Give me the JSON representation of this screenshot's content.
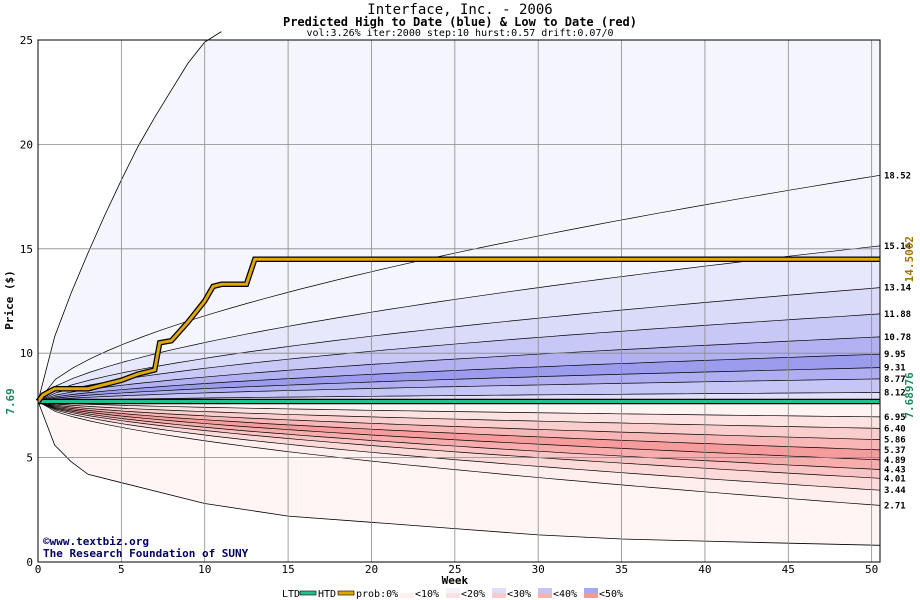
{
  "chart_data": {
    "type": "area",
    "title": "Interface, Inc. - 2006",
    "subtitle": "Predicted High to Date (blue) &  Low to Date (red)",
    "params": "vol:3.26% iter:2000 step:10 hurst:0.57 drift:0.07/0",
    "xlabel": "Week",
    "ylabel": "Price ($)",
    "xlim": [
      0,
      50.5
    ],
    "ylim": [
      0,
      25
    ],
    "x_ticks": [
      0,
      5,
      10,
      15,
      20,
      25,
      30,
      35,
      40,
      45,
      50
    ],
    "y_ticks": [
      0,
      5,
      10,
      15,
      20,
      25
    ],
    "grid": true,
    "start_price": 7.69,
    "start_price_label": "7.69",
    "ltd_value": 7.68976,
    "ltd_label": "7.68976",
    "htd_value": 14.5002,
    "htd_label": "14.5002",
    "htd_series": [
      [
        0,
        7.69
      ],
      [
        0.3,
        8.0
      ],
      [
        1,
        8.3
      ],
      [
        2,
        8.3
      ],
      [
        3,
        8.3
      ],
      [
        4,
        8.5
      ],
      [
        5,
        8.7
      ],
      [
        6,
        9.0
      ],
      [
        7,
        9.2
      ],
      [
        7.3,
        10.5
      ],
      [
        8,
        10.6
      ],
      [
        9,
        11.5
      ],
      [
        10,
        12.5
      ],
      [
        10.5,
        13.2
      ],
      [
        11,
        13.3
      ],
      [
        12.5,
        13.3
      ],
      [
        13,
        14.5
      ],
      [
        50.5,
        14.5
      ]
    ],
    "high_bands": [
      {
        "label": "18.52",
        "end": 18.52,
        "fill": "#f5f5fe"
      },
      {
        "label": "15.14",
        "end": 15.14,
        "fill": "#e8e8fc"
      },
      {
        "label": "13.14",
        "end": 13.14,
        "fill": "#dadaf9"
      },
      {
        "label": "11.88",
        "end": 11.88,
        "fill": "#c8c8f6"
      },
      {
        "label": "10.78",
        "end": 10.78,
        "fill": "#b2b2f2"
      },
      {
        "label": "9.95",
        "end": 9.95,
        "fill": "#9c9cee"
      },
      {
        "label": "9.31",
        "end": 9.31,
        "fill": "#aeaef1"
      },
      {
        "label": "8.77",
        "end": 8.77,
        "fill": "#c6c6f6"
      },
      {
        "label": "8.12",
        "end": 8.12,
        "fill": "#e0e0fb"
      }
    ],
    "low_bands": [
      {
        "label": "6.95",
        "end": 6.95,
        "fill": "#fff3f3"
      },
      {
        "label": "6.40",
        "end": 6.4,
        "fill": "#fde2e2"
      },
      {
        "label": "5.86",
        "end": 5.86,
        "fill": "#fbcece"
      },
      {
        "label": "5.37",
        "end": 5.37,
        "fill": "#f9b6b6"
      },
      {
        "label": "4.89",
        "end": 4.89,
        "fill": "#f79c9c"
      },
      {
        "label": "4.43",
        "end": 4.43,
        "fill": "#f8adad"
      },
      {
        "label": "4.01",
        "end": 4.01,
        "fill": "#fac4c4"
      },
      {
        "label": "3.44",
        "end": 3.44,
        "fill": "#fcdada"
      },
      {
        "label": "2.71",
        "end": 2.71,
        "fill": "#feeeee"
      }
    ],
    "outer_high_curve": [
      [
        0,
        7.69
      ],
      [
        1,
        10.8
      ],
      [
        2,
        12.9
      ],
      [
        3,
        14.8
      ],
      [
        4,
        16.6
      ],
      [
        5,
        18.3
      ],
      [
        6,
        19.9
      ],
      [
        7,
        21.3
      ],
      [
        8,
        22.6
      ],
      [
        9,
        23.9
      ],
      [
        10,
        24.9
      ],
      [
        11,
        25.4
      ]
    ],
    "outer_low_curve": [
      [
        0,
        7.69
      ],
      [
        1,
        5.6
      ],
      [
        2,
        4.8
      ],
      [
        3,
        4.2
      ],
      [
        5,
        3.8
      ],
      [
        10,
        2.8
      ],
      [
        15,
        2.2
      ],
      [
        20,
        1.9
      ],
      [
        25,
        1.6
      ],
      [
        30,
        1.3
      ],
      [
        35,
        1.1
      ],
      [
        40,
        1.0
      ],
      [
        45,
        0.9
      ],
      [
        50.5,
        0.8
      ]
    ],
    "watermark": {
      "line1": "©www.textbiz.org",
      "line2": "The Research Foundation of SUNY"
    },
    "legend": {
      "ltd": "LTD",
      "htd": "HTD",
      "prob": "prob:0%",
      "items": [
        "<10%",
        "<20%",
        "<30%",
        "<40%",
        "<50%"
      ]
    }
  },
  "colors": {
    "ltd": "#1fc28f",
    "htd": "#e0a800",
    "ltd_label": "#1a8a5a",
    "htd_label": "#a87400"
  }
}
